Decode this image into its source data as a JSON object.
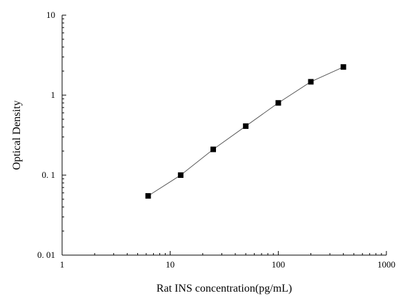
{
  "chart_data": {
    "type": "line",
    "title": "",
    "xlabel": "Rat INS concentration(pg/mL)",
    "ylabel": "Optical Density",
    "x_scale": "log",
    "y_scale": "log",
    "xlim": [
      1,
      1000
    ],
    "ylim": [
      0.01,
      10
    ],
    "x_ticks": [
      {
        "value": 1,
        "label": "1"
      },
      {
        "value": 10,
        "label": "10"
      },
      {
        "value": 100,
        "label": "100"
      },
      {
        "value": 1000,
        "label": "1000"
      }
    ],
    "y_ticks": [
      {
        "value": 0.01,
        "label": "0. 01"
      },
      {
        "value": 0.1,
        "label": "0. 1"
      },
      {
        "value": 1,
        "label": "1"
      },
      {
        "value": 10,
        "label": "10"
      }
    ],
    "grid": false,
    "legend": "none",
    "series": [
      {
        "marker": "square",
        "color": "#000000",
        "line_color": "#555555",
        "x": [
          6.25,
          12.5,
          25,
          50,
          100,
          200,
          400
        ],
        "y": [
          0.055,
          0.1,
          0.21,
          0.41,
          0.8,
          1.47,
          2.25
        ]
      }
    ]
  }
}
